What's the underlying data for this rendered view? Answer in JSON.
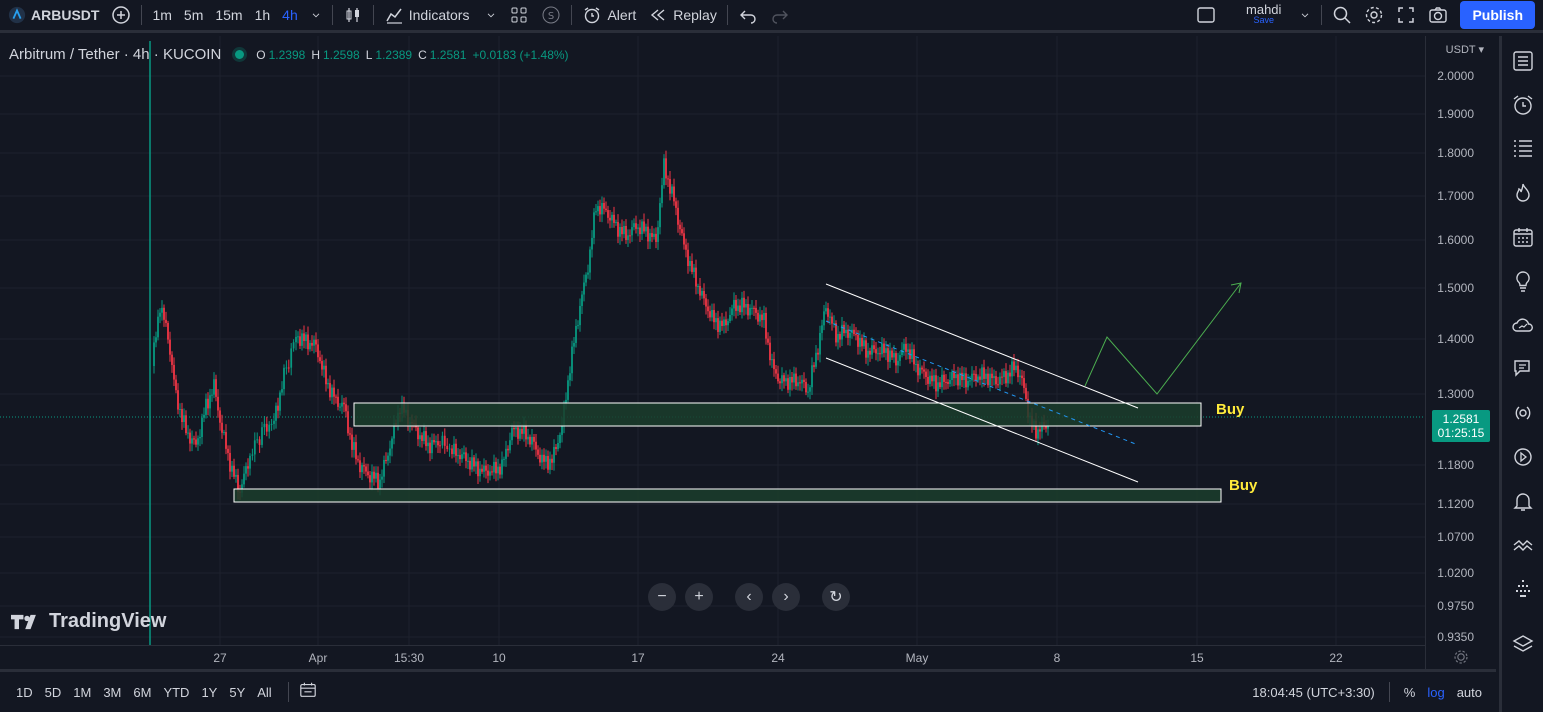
{
  "toolbar": {
    "symbol": "ARBUSDT",
    "intervals": [
      "1m",
      "5m",
      "15m",
      "1h",
      "4h"
    ],
    "active_interval": "4h",
    "indicators_label": "Indicators",
    "alert_label": "Alert",
    "replay_label": "Replay",
    "user_name": "mahdi",
    "save_label": "Save",
    "publish_label": "Publish"
  },
  "legend": {
    "title": "Arbitrum / Tether · 4h · KUCOIN",
    "open_label": "O",
    "open": "1.2398",
    "high_label": "H",
    "high": "1.2598",
    "low_label": "L",
    "low": "1.2389",
    "close_label": "C",
    "close": "1.2581",
    "change": "+0.0183 (+1.48%)"
  },
  "price_axis": {
    "currency": "USDT",
    "labels": [
      "2.0000",
      "1.9000",
      "1.8000",
      "1.7000",
      "1.6000",
      "1.5000",
      "1.4000",
      "1.3000",
      "1.1800",
      "1.1200",
      "1.0700",
      "1.0200",
      "0.9750",
      "0.9350"
    ],
    "current_price": "1.2581",
    "countdown": "01:25:15"
  },
  "time_axis": {
    "labels": [
      "27",
      "Apr",
      "15:30",
      "10",
      "17",
      "24",
      "May",
      "8",
      "15",
      "22"
    ]
  },
  "annotations": {
    "zone1_label": "Buy",
    "zone2_label": "Buy"
  },
  "brand": "TradingView",
  "bottom": {
    "ranges": [
      "1D",
      "5D",
      "1M",
      "3M",
      "6M",
      "YTD",
      "1Y",
      "5Y",
      "All"
    ],
    "clock": "18:04:45 (UTC+3:30)",
    "percent": "%",
    "log": "log",
    "auto": "auto"
  },
  "colors": {
    "up": "#089981",
    "down": "#f23645",
    "accent": "#2962ff",
    "zone_fill": "#1b3d2b",
    "label": "#ffeb3b"
  }
}
